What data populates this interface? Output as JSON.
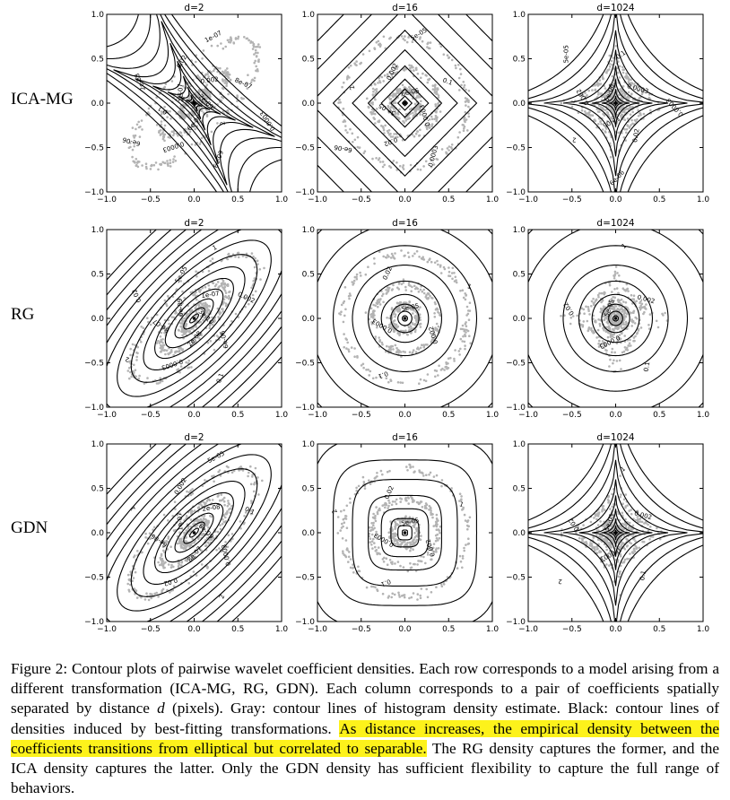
{
  "figure": {
    "rows": [
      {
        "label": "ICA-MG",
        "kind": "ica"
      },
      {
        "label": "RG",
        "kind": "rg"
      },
      {
        "label": "GDN",
        "kind": "gdn"
      }
    ],
    "columns": [
      {
        "title": "d=2",
        "corr": 0.75,
        "shape": "ellipse"
      },
      {
        "title": "d=16",
        "corr": 0.0,
        "shape": "round"
      },
      {
        "title": "d=1024",
        "corr": 0.0,
        "shape": "star"
      }
    ],
    "colors": {
      "contour": "#000000",
      "scatter": "#b3b3b3"
    }
  },
  "chart_data": {
    "type": "contour",
    "title": "Contour plots of pairwise wavelet coefficient densities",
    "xlim": [
      -1.0,
      1.0
    ],
    "ylim": [
      -1.0,
      1.0
    ],
    "xticks": [
      "−1.0",
      "−0.5",
      "0.0",
      "0.5",
      "1.0"
    ],
    "yticks": [
      "−1.0",
      "−0.5",
      "0.0",
      "0.5",
      "1.0"
    ],
    "panels": [
      {
        "row": "ICA-MG",
        "title": "d=2",
        "contour_labels": [
          "2e-09",
          "1e-07",
          "6e-06",
          "0.002",
          "0.1",
          "2",
          "0.02",
          "0.0003",
          "8e-07",
          "2e-08",
          "6e-09",
          "1e-07",
          "6e-06",
          "0.0003"
        ]
      },
      {
        "row": "ICA-MG",
        "title": "d=16",
        "contour_labels": [
          "6e-06",
          "5e-05",
          "0.0003",
          "0.002",
          "0.02",
          "0.1",
          "2",
          "0.0003",
          "5e-05",
          "6e-06"
        ]
      },
      {
        "row": "ICA-MG",
        "title": "d=1024",
        "contour_labels": [
          "6e-06",
          "5e-05",
          "0.0003",
          "0.002",
          "0.02",
          "0.1",
          "2",
          "0.0003",
          "5e-05",
          "6e-06"
        ]
      },
      {
        "row": "RG",
        "title": "d=2",
        "contour_labels": [
          "3e-10",
          "6e-09",
          "2e-08",
          "1e-07",
          "8e-07",
          "6e-06",
          "5e-05",
          "0.0003",
          "0.002",
          "0.02",
          "0.1",
          "1",
          "2"
        ]
      },
      {
        "row": "RG",
        "title": "d=16",
        "contour_labels": [
          "5e-05",
          "0.0003",
          "0.002",
          "0.02",
          "0.1",
          "1"
        ]
      },
      {
        "row": "RG",
        "title": "d=1024",
        "contour_labels": [
          "5e-05",
          "0.0003",
          "0.002",
          "0.02",
          "0.1",
          "1"
        ]
      },
      {
        "row": "GDN",
        "title": "d=2",
        "contour_labels": [
          "6e-09",
          "1e-07",
          "8e-07",
          "2e-08",
          "6e-06",
          "0.0003",
          "0.002",
          "0.02",
          "0.1",
          "1",
          "2",
          "5e-05"
        ]
      },
      {
        "row": "GDN",
        "title": "d=16",
        "contour_labels": [
          "5e-05",
          "0.0003",
          "0.002",
          "0.02",
          "0.1",
          "1",
          "2"
        ]
      },
      {
        "row": "GDN",
        "title": "d=1024",
        "contour_labels": [
          "5e-05",
          "0.0003",
          "0.002",
          "0.02",
          "0.1",
          "1",
          "2"
        ]
      }
    ]
  },
  "caption": {
    "intro": "Figure 2: Contour plots of pairwise wavelet coefficient densities. Each row corresponds to a model arising from a different transformation (ICA-MG, RG, GDN). Each column corresponds to a pair of coefficients spatially separated by distance ",
    "var": "d",
    "mid": " (pixels). Gray: contour lines of histogram density estimate. Black: contour lines of densities induced by best-fitting transformations. ",
    "highlight": "As distance increases, the empirical density between the coefficients transitions from elliptical but correlated to separable.",
    "outro": " The RG density captures the former, and the ICA density captures the latter. Only the GDN density has sufficient flexibility to capture the full range of behaviors."
  }
}
